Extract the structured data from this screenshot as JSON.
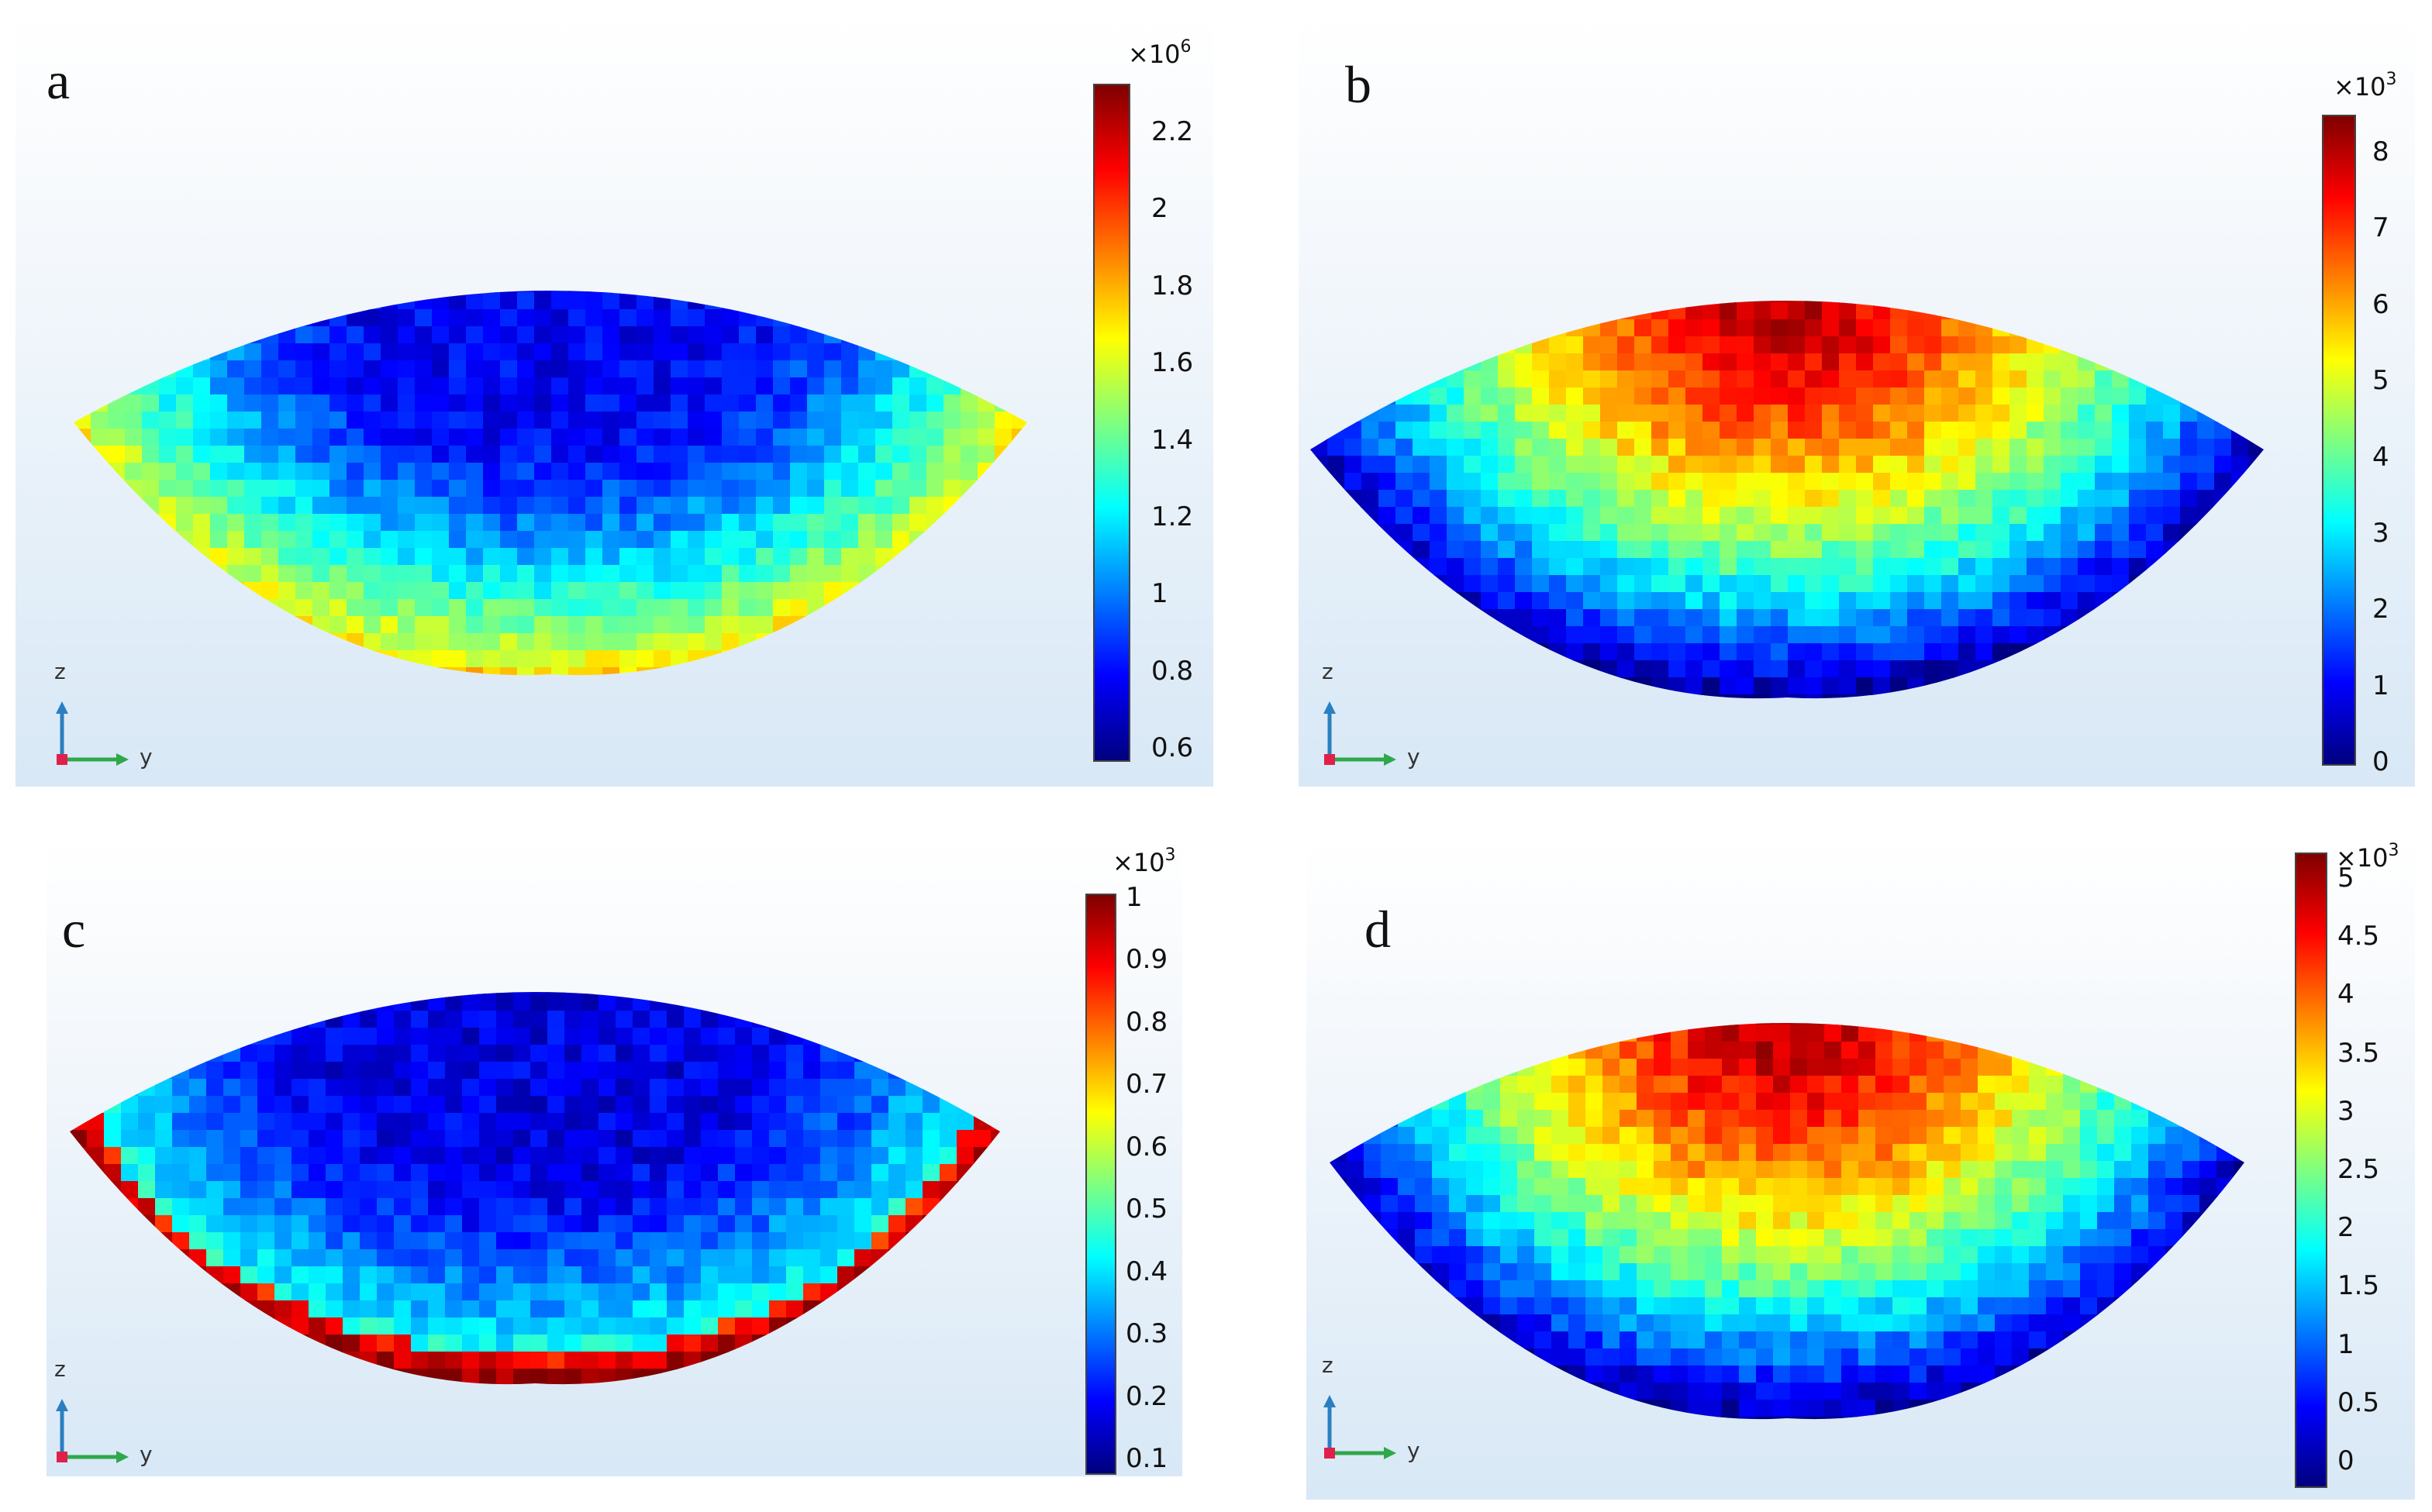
{
  "colors": {
    "colormap": [
      "#00007f",
      "#0000ff",
      "#007fff",
      "#00ffff",
      "#7fff7f",
      "#ffff00",
      "#ff7f00",
      "#ff0000",
      "#7f0000"
    ],
    "background_top": "#ffffff",
    "background_bottom": "#d8e8f6",
    "axis_z": "#2a7fc0",
    "axis_y": "#2ea84a",
    "axis_origin": "#e0204a"
  },
  "axis_labels": {
    "z": "z",
    "y": "y"
  },
  "icons": {
    "axis_triad": "axis-triad-icon"
  },
  "panels": [
    {
      "id": "a",
      "label": "a",
      "multiplier_base": "×10",
      "multiplier_exp": "6",
      "ticks": [
        "2.2",
        "2",
        "1.8",
        "1.6",
        "1.4",
        "1.2",
        "1",
        "0.8",
        "0.6"
      ],
      "pattern": "edge-high",
      "min": 0.55,
      "max": 2.3
    },
    {
      "id": "b",
      "label": "b",
      "multiplier_base": "×10",
      "multiplier_exp": "3",
      "ticks": [
        "8",
        "7",
        "6",
        "5",
        "4",
        "3",
        "2",
        "1",
        "0"
      ],
      "pattern": "center-high",
      "min": 0,
      "max": 8.6
    },
    {
      "id": "c",
      "label": "c",
      "multiplier_base": "×10",
      "multiplier_exp": "3",
      "ticks": [
        "1",
        "0.9",
        "0.8",
        "0.7",
        "0.6",
        "0.5",
        "0.4",
        "0.3",
        "0.2",
        "0.1"
      ],
      "pattern": "rim-high",
      "min": 0.05,
      "max": 1.0
    },
    {
      "id": "d",
      "label": "d",
      "multiplier_base": "×10",
      "multiplier_exp": "3",
      "ticks": [
        "5",
        "4.5",
        "4",
        "3.5",
        "3",
        "2.5",
        "2",
        "1.5",
        "1",
        "0.5",
        "0"
      ],
      "pattern": "center-high",
      "min": 0,
      "max": 5.2
    }
  ]
}
